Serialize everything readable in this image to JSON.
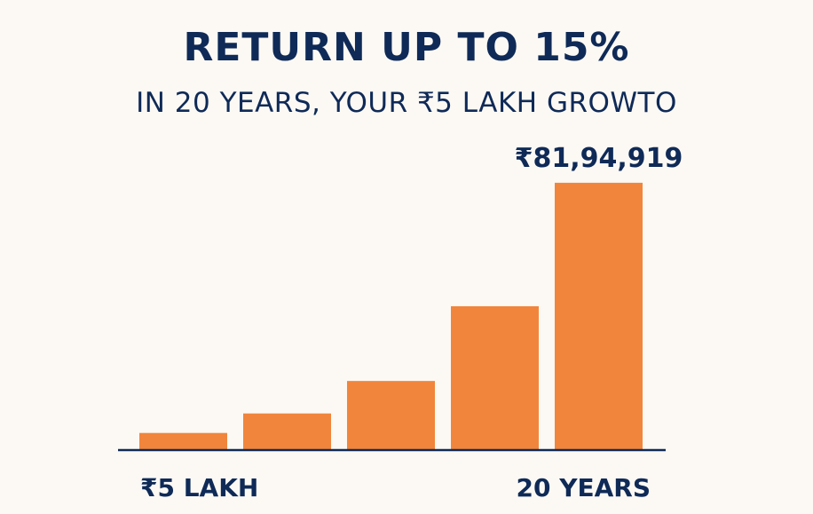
{
  "chart_data": {
    "type": "bar",
    "title": "RETURN UP TO 15%",
    "subtitle": "IN 20 YEARS, YOUR ₹5 LAKH GROWTO",
    "categories": [
      "",
      "",
      "",
      "",
      ""
    ],
    "values": [
      5,
      11,
      21,
      44,
      82
    ],
    "value_labels": [
      "",
      "",
      "",
      "",
      "₹81,94,919"
    ],
    "x_start_label": "₹5 LAKH",
    "x_end_label": "20 YEARS",
    "ylim": [
      0,
      100
    ],
    "grid": false,
    "legend": "none"
  },
  "colors": {
    "bar": "#f1853c",
    "text": "#0f2a57",
    "axis": "#0f2a57",
    "background": "#fcf9f4"
  }
}
